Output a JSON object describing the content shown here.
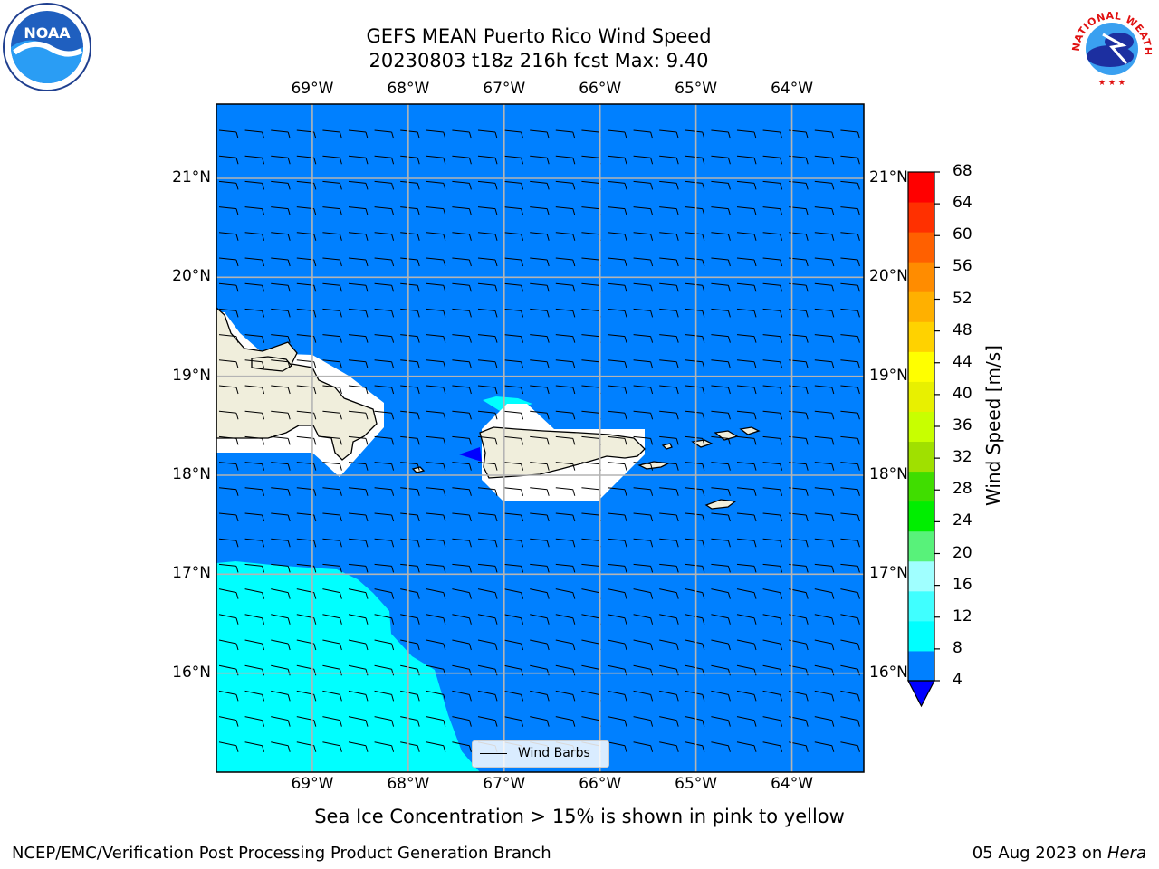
{
  "header": {
    "title_line1": "GEFS MEAN Puerto Rico Wind Speed",
    "title_line2": "20230803 t18z 216h fcst   Max: 9.40"
  },
  "map": {
    "lon_labels": [
      "69°W",
      "68°W",
      "67°W",
      "66°W",
      "65°W",
      "64°W"
    ],
    "lat_labels": [
      "21°N",
      "20°N",
      "19°N",
      "18°N",
      "17°N",
      "16°N"
    ],
    "lon_values": [
      -69,
      -68,
      -67,
      -66,
      -65,
      -64
    ],
    "lat_values": [
      21,
      20,
      19,
      18,
      17,
      16
    ],
    "extent": {
      "lon_min": -70,
      "lon_max": -63.25,
      "lat_min": 15,
      "lat_max": 21.75
    },
    "ocean_color": "#0080ff",
    "high_wind_color": "#00ffff",
    "land_color": "#f0eedc",
    "legend_label": "Wind Barbs"
  },
  "colorbar": {
    "label": "Wind Speed [m/s]",
    "ticks": [
      4,
      8,
      12,
      16,
      20,
      24,
      28,
      32,
      36,
      40,
      44,
      48,
      52,
      56,
      60,
      64,
      68
    ],
    "colors": [
      "#0080ff",
      "#00ffff",
      "#40ffff",
      "#a0ffff",
      "#58f27a",
      "#00ee00",
      "#40dd00",
      "#a0e000",
      "#c8ff00",
      "#e8f000",
      "#ffff00",
      "#ffd200",
      "#ffb000",
      "#ff8c00",
      "#ff6000",
      "#ff3000",
      "#ff0000"
    ],
    "under_color": "#0000ff"
  },
  "logos": {
    "left": "NOAA",
    "right": "NATIONAL WEATHER SERVICE"
  },
  "note": "Sea Ice Concentration > 15% is shown in pink to yellow",
  "footer": {
    "left": "NCEP/EMC/Verification Post Processing Product Generation Branch",
    "right_date": "05 Aug 2023 on ",
    "right_host": "Hera"
  }
}
